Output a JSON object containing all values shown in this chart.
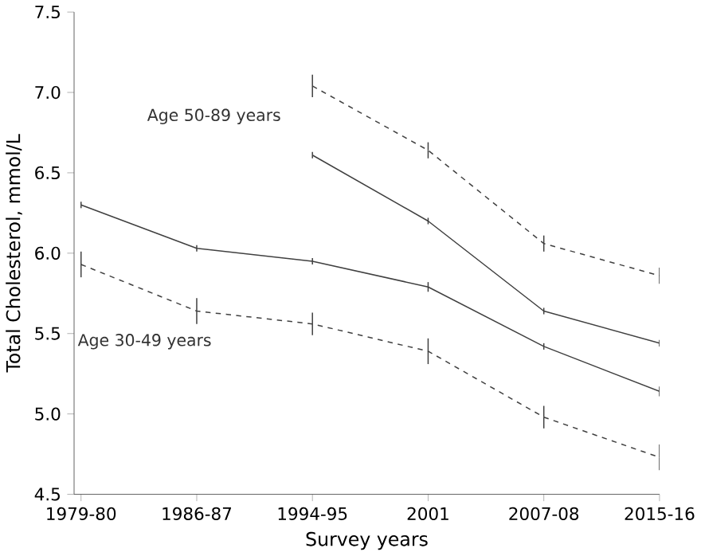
{
  "chart_data": {
    "type": "line",
    "xlabel": "Survey years",
    "ylabel": "Total Cholesterol, mmol/L",
    "categories": [
      "1979-80",
      "1986-87",
      "1994-95",
      "2001",
      "2007-08",
      "2015-16"
    ],
    "series": [
      {
        "color": "#404040",
        "line_style": "dashed",
        "values": [
          null,
          null,
          7.04,
          6.64,
          6.06,
          5.86
        ],
        "errors": [
          null,
          null,
          0.07,
          0.05,
          0.05,
          0.05
        ]
      },
      {
        "color": "#404040",
        "line_style": "solid",
        "values": [
          null,
          null,
          6.61,
          6.2,
          5.64,
          5.44
        ],
        "errors": [
          null,
          null,
          0.02,
          0.02,
          0.02,
          0.02
        ]
      },
      {
        "color": "#404040",
        "line_style": "solid",
        "values": [
          6.3,
          6.03,
          5.95,
          5.79,
          5.42,
          5.14
        ],
        "errors": [
          0.02,
          0.02,
          0.02,
          0.03,
          0.02,
          0.03
        ]
      },
      {
        "color": "#404040",
        "line_style": "dashed",
        "values": [
          5.93,
          5.64,
          5.56,
          5.39,
          4.98,
          4.73
        ],
        "errors": [
          0.08,
          0.08,
          0.07,
          0.08,
          0.07,
          0.08
        ]
      }
    ],
    "annotations": [
      "Age 50-89 years",
      "Age 30-49 years"
    ],
    "ylim": [
      4.5,
      7.5
    ],
    "yticks": [
      {
        "value": 4.5,
        "label": "4.5"
      },
      {
        "value": 5.0,
        "label": "5.0"
      },
      {
        "value": 5.5,
        "label": "5.5"
      },
      {
        "value": 6.0,
        "label": "6.0"
      },
      {
        "value": 6.5,
        "label": "6.5"
      },
      {
        "value": 7.0,
        "label": "7.0"
      },
      {
        "value": 7.5,
        "label": "7.5"
      }
    ],
    "grid": false,
    "marker": "none"
  }
}
